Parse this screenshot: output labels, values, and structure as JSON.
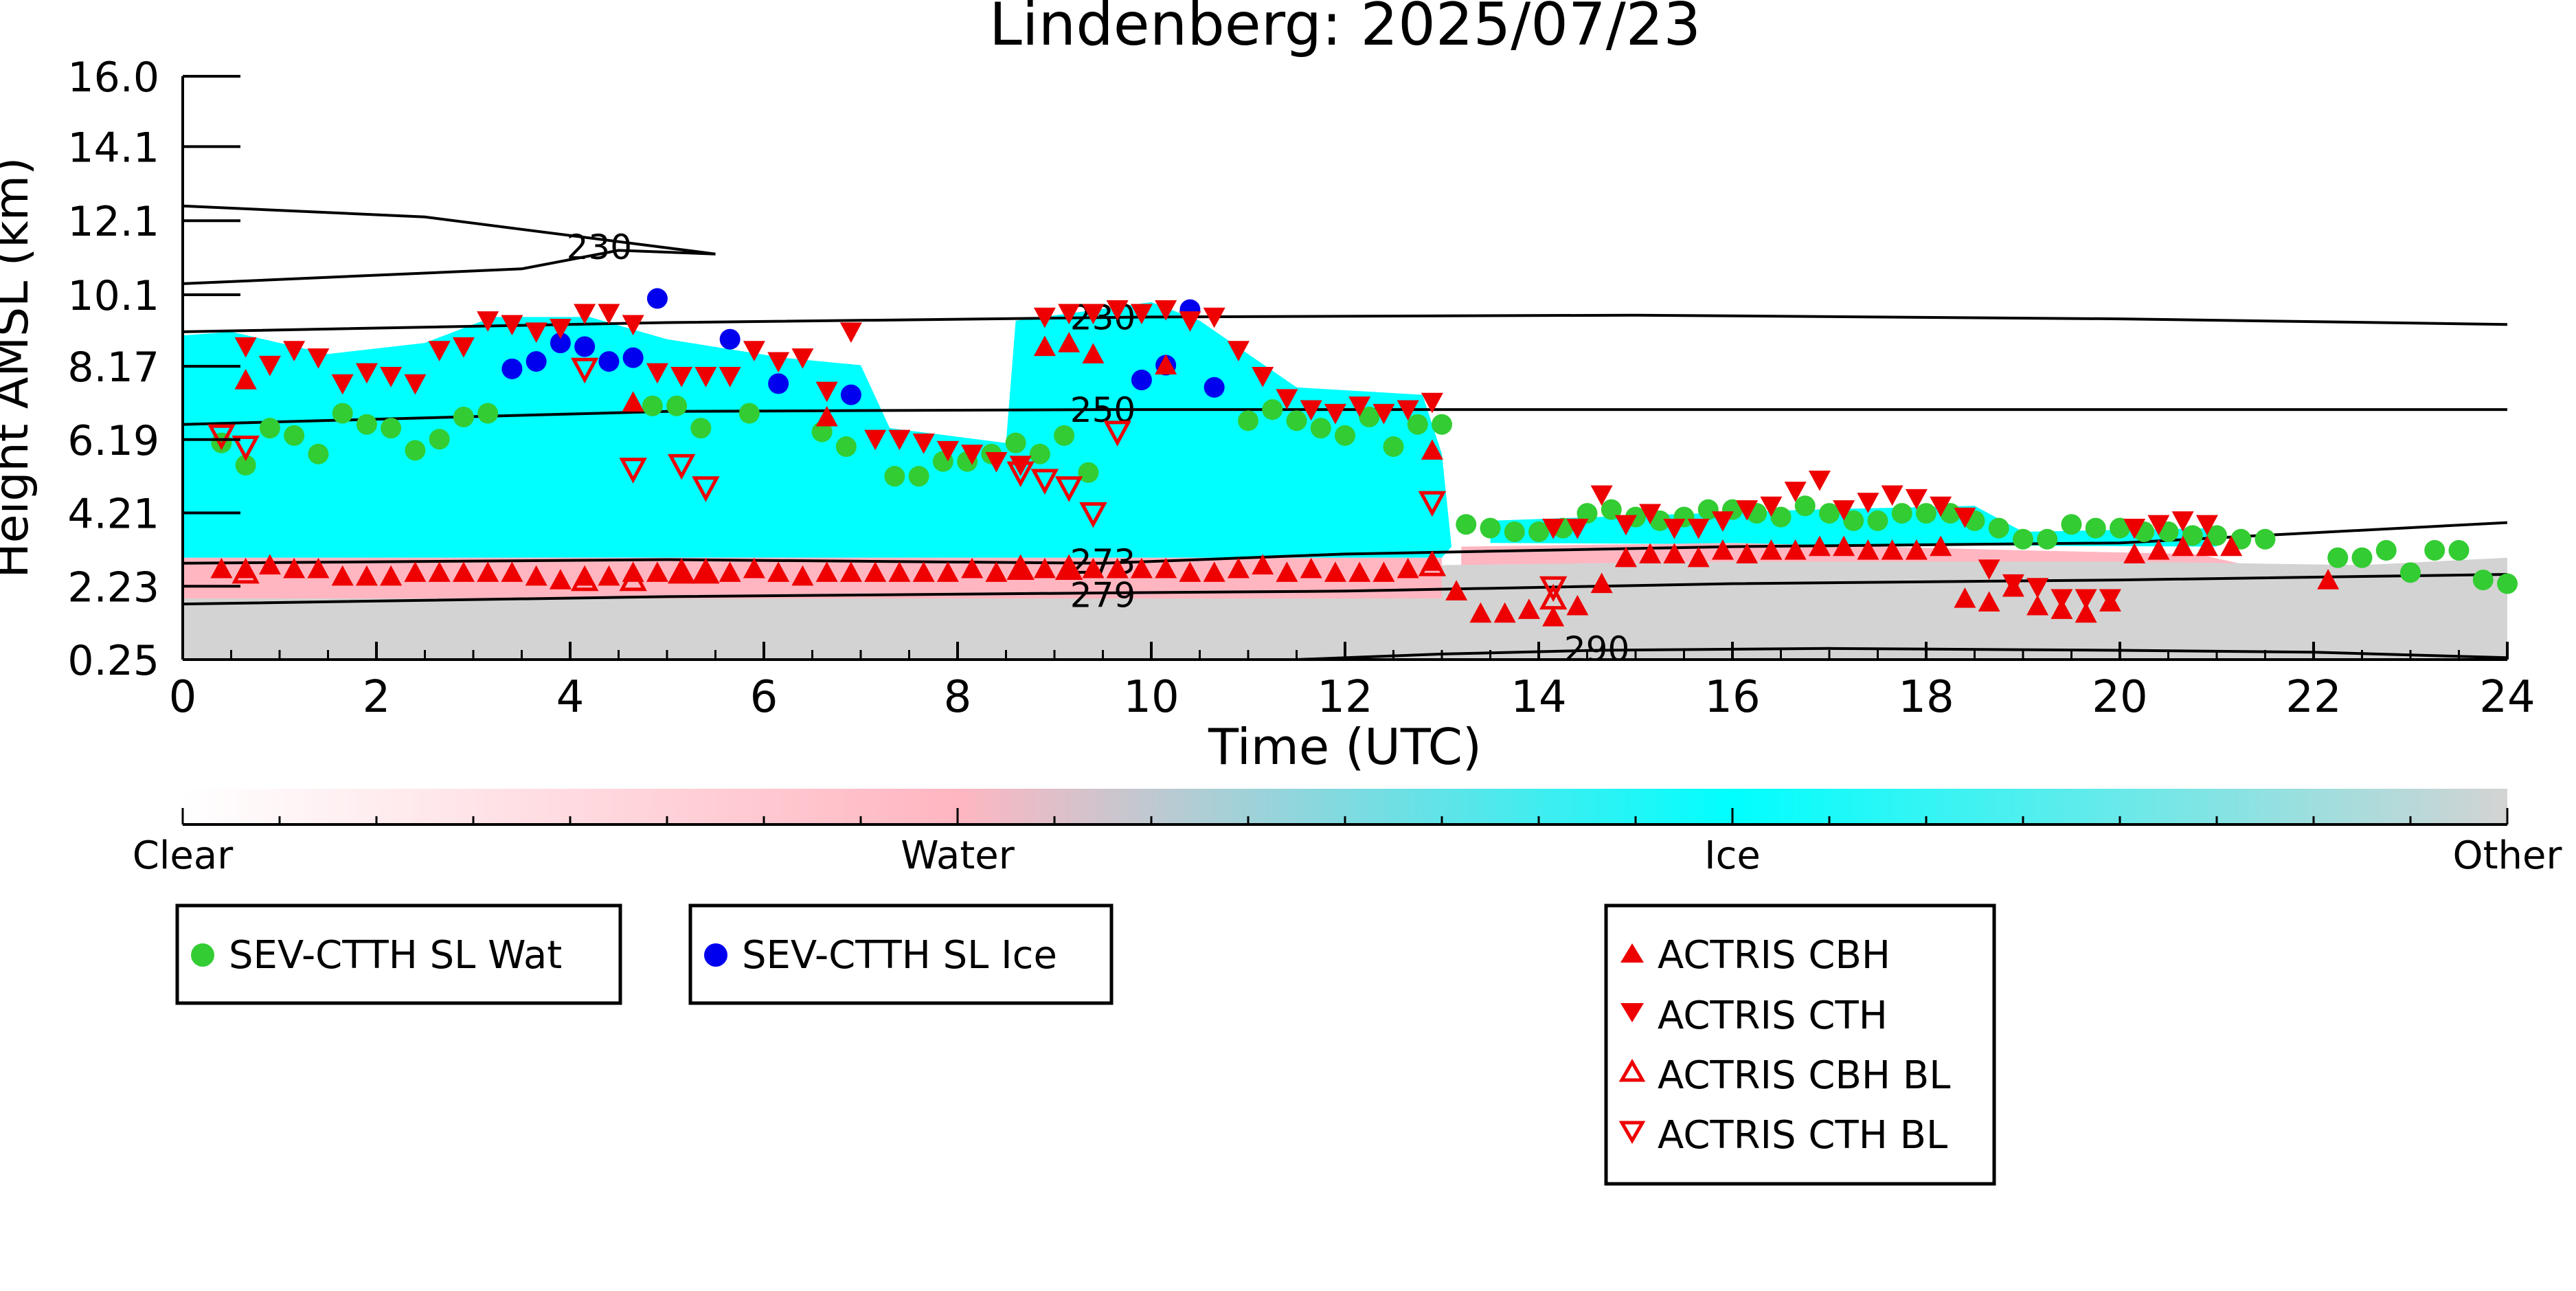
{
  "chart_data": {
    "type": "scatter",
    "title": "Lindenberg: 2025/07/23",
    "xlabel": "Time (UTC)",
    "ylabel": "Height AMSL (km)",
    "xlim": [
      0,
      24
    ],
    "ylim": [
      0.25,
      16.0
    ],
    "x_ticks": [
      0,
      2,
      4,
      6,
      8,
      10,
      12,
      14,
      16,
      18,
      20,
      22,
      24
    ],
    "y_ticks": [
      0.25,
      2.23,
      4.21,
      6.19,
      8.17,
      10.1,
      12.1,
      14.1,
      16.0
    ],
    "y_tick_labels": [
      "0.25",
      "2.23",
      "4.21",
      "6.19",
      "8.17",
      "10.1",
      "12.1",
      "14.1",
      "16.0"
    ],
    "grid": false,
    "colorbar": {
      "labels": [
        "Clear",
        "Water",
        "Ice",
        "Other"
      ],
      "colors": [
        "#ffffff",
        "#ffb6c1",
        "#00ffff",
        "#d3d3d3"
      ]
    },
    "classification_regions": [
      {
        "class": "Ice",
        "color": "#00ffff",
        "outline": [
          [
            0,
            9.0
          ],
          [
            0.5,
            9.1
          ],
          [
            1.5,
            8.5
          ],
          [
            2.5,
            8.8
          ],
          [
            3.2,
            9.5
          ],
          [
            4.2,
            9.5
          ],
          [
            5.0,
            8.9
          ],
          [
            6.2,
            8.4
          ],
          [
            7.0,
            8.2
          ],
          [
            7.3,
            6.5
          ],
          [
            8.5,
            6.1
          ],
          [
            8.6,
            9.4
          ],
          [
            10.0,
            9.9
          ],
          [
            10.5,
            9.4
          ],
          [
            11.5,
            7.6
          ],
          [
            12.8,
            7.4
          ],
          [
            13.0,
            5.8
          ],
          [
            13.1,
            3.3
          ],
          [
            13.0,
            3.0
          ],
          [
            0,
            3.0
          ]
        ]
      },
      {
        "class": "Ice",
        "color": "#00ffff",
        "outline": [
          [
            13.5,
            4.0
          ],
          [
            16.8,
            4.3
          ],
          [
            18.5,
            4.4
          ],
          [
            19.0,
            3.7
          ],
          [
            21.0,
            3.8
          ],
          [
            21.0,
            3.3
          ],
          [
            13.5,
            3.4
          ]
        ]
      },
      {
        "class": "Water",
        "color": "#ffb6c1",
        "outline": [
          [
            13.2,
            3.3
          ],
          [
            16.0,
            3.4
          ],
          [
            19.0,
            3.2
          ],
          [
            20.8,
            3.1
          ],
          [
            22.0,
            2.4
          ],
          [
            22.0,
            1.4
          ],
          [
            13.2,
            1.5
          ]
        ]
      },
      {
        "class": "Other",
        "color": "#d3d3d3",
        "outline": [
          [
            13.0,
            2.8
          ],
          [
            16.0,
            2.9
          ],
          [
            20.0,
            2.9
          ],
          [
            22.5,
            2.8
          ],
          [
            24,
            3.0
          ],
          [
            24,
            0.25
          ],
          [
            13.0,
            0.25
          ]
        ]
      },
      {
        "class": "Other",
        "color": "#d3d3d3",
        "outline": [
          [
            0,
            1.95
          ],
          [
            13.0,
            1.95
          ],
          [
            13.0,
            0.25
          ],
          [
            0,
            0.25
          ]
        ]
      },
      {
        "class": "Water",
        "color": "#ffb6c1",
        "outline": [
          [
            0,
            3.0
          ],
          [
            13.0,
            3.0
          ],
          [
            13.0,
            1.9
          ],
          [
            0,
            1.9
          ]
        ]
      }
    ],
    "contours": [
      {
        "label": "230",
        "label_at": [
          4.3,
          11.4
        ],
        "points": [
          [
            0,
            12.5
          ],
          [
            2.5,
            12.2
          ],
          [
            5.5,
            11.2
          ],
          [
            4.5,
            11.3
          ],
          [
            3.5,
            10.8
          ],
          [
            0,
            10.4
          ]
        ]
      },
      {
        "label": "230",
        "label_at": [
          9.5,
          9.5
        ],
        "points": [
          [
            0,
            9.1
          ],
          [
            5,
            9.35
          ],
          [
            10,
            9.5
          ],
          [
            15,
            9.55
          ],
          [
            20,
            9.45
          ],
          [
            24,
            9.3
          ]
        ]
      },
      {
        "label": "250",
        "label_at": [
          9.5,
          7.0
        ],
        "points": [
          [
            0,
            6.6
          ],
          [
            5,
            6.95
          ],
          [
            9.5,
            7.0
          ],
          [
            15,
            7.0
          ],
          [
            20,
            7.0
          ],
          [
            24,
            7.0
          ]
        ]
      },
      {
        "label": "273",
        "label_at": [
          9.5,
          2.9
        ],
        "points": [
          [
            0,
            2.85
          ],
          [
            5,
            2.95
          ],
          [
            9.5,
            2.85
          ],
          [
            12,
            3.1
          ],
          [
            16,
            3.3
          ],
          [
            20,
            3.4
          ],
          [
            24,
            3.95
          ]
        ]
      },
      {
        "label": "279",
        "label_at": [
          9.5,
          2.0
        ],
        "points": [
          [
            0,
            1.75
          ],
          [
            5,
            1.95
          ],
          [
            9.5,
            2.05
          ],
          [
            12,
            2.1
          ],
          [
            16,
            2.3
          ],
          [
            20,
            2.4
          ],
          [
            24,
            2.55
          ]
        ]
      },
      {
        "label": "290",
        "label_at": [
          14.6,
          0.55
        ],
        "points": [
          [
            11.5,
            0.25
          ],
          [
            13,
            0.4
          ],
          [
            14.6,
            0.5
          ],
          [
            17,
            0.55
          ],
          [
            20,
            0.5
          ],
          [
            22,
            0.45
          ],
          [
            24,
            0.3
          ]
        ]
      }
    ],
    "series": [
      {
        "name": "SEV-CTTH SL Wat",
        "marker": "circle",
        "color": "#33cc33",
        "x": [
          0.4,
          0.65,
          0.9,
          1.15,
          1.4,
          1.65,
          1.9,
          2.15,
          2.4,
          2.65,
          2.9,
          3.15,
          4.85,
          5.1,
          5.35,
          5.85,
          6.6,
          6.85,
          7.35,
          7.6,
          7.85,
          8.1,
          8.35,
          8.6,
          8.85,
          9.1,
          9.35,
          11.0,
          11.25,
          11.5,
          11.75,
          12.0,
          12.25,
          12.5,
          12.75,
          13.0,
          13.25,
          13.5,
          13.75,
          14.0,
          14.25,
          14.5,
          14.75,
          15.0,
          15.25,
          15.5,
          15.75,
          16.0,
          16.25,
          16.5,
          16.75,
          17.0,
          17.25,
          17.5,
          17.75,
          18.0,
          18.25,
          18.5,
          18.75,
          19.0,
          19.25,
          19.5,
          19.75,
          20.0,
          20.25,
          20.5,
          20.75,
          21.0,
          21.25,
          21.5,
          22.25,
          22.5,
          22.75,
          23.0,
          23.25,
          23.5,
          23.75,
          24.0
        ],
        "y": [
          6.1,
          5.5,
          6.5,
          6.3,
          5.8,
          6.9,
          6.6,
          6.5,
          5.9,
          6.2,
          6.8,
          6.9,
          7.1,
          7.1,
          6.5,
          6.9,
          6.4,
          6.0,
          5.2,
          5.2,
          5.6,
          5.6,
          5.8,
          6.1,
          5.8,
          6.3,
          5.3,
          6.7,
          7.0,
          6.7,
          6.5,
          6.3,
          6.8,
          6.0,
          6.6,
          6.6,
          3.9,
          3.8,
          3.7,
          3.7,
          3.8,
          4.2,
          4.3,
          4.1,
          4.0,
          4.1,
          4.3,
          4.3,
          4.2,
          4.1,
          4.4,
          4.2,
          4.0,
          4.0,
          4.2,
          4.2,
          4.2,
          4.0,
          3.8,
          3.5,
          3.5,
          3.9,
          3.8,
          3.8,
          3.7,
          3.7,
          3.6,
          3.6,
          3.5,
          3.5,
          3.0,
          3.0,
          3.2,
          2.6,
          3.2,
          3.2,
          2.4,
          2.3
        ]
      },
      {
        "name": "SEV-CTTH SL Ice",
        "marker": "circle",
        "color": "#0000ee",
        "x": [
          3.4,
          3.65,
          3.9,
          4.15,
          4.4,
          4.65,
          4.9,
          5.65,
          6.15,
          6.9,
          9.9,
          10.15,
          10.4,
          10.65
        ],
        "y": [
          8.1,
          8.3,
          8.8,
          8.7,
          8.3,
          8.4,
          10.0,
          8.9,
          7.7,
          7.4,
          7.8,
          8.2,
          9.7,
          7.6
        ]
      },
      {
        "name": "ACTRIS CBH",
        "marker": "triangle-up",
        "color": "#ee0000",
        "filled": true,
        "x": [
          0.4,
          0.65,
          0.9,
          1.15,
          1.4,
          1.65,
          1.9,
          2.15,
          2.4,
          2.65,
          2.9,
          3.15,
          3.4,
          3.65,
          3.9,
          4.15,
          4.4,
          4.65,
          4.9,
          5.15,
          5.4,
          5.65,
          5.9,
          6.15,
          6.4,
          6.65,
          6.9,
          7.15,
          7.4,
          7.65,
          7.9,
          8.15,
          8.4,
          8.65,
          8.9,
          9.15,
          9.4,
          9.65,
          9.9,
          10.15,
          10.4,
          10.65,
          10.9,
          11.15,
          11.4,
          11.65,
          11.9,
          12.15,
          12.4,
          12.65,
          12.9,
          13.15,
          13.4,
          13.65,
          13.9,
          14.15,
          14.4,
          14.65,
          14.9,
          15.15,
          15.4,
          15.65,
          15.9,
          16.15,
          16.4,
          16.65,
          16.9,
          17.15,
          17.4,
          17.65,
          17.9,
          18.15,
          18.4,
          18.65,
          18.9,
          19.15,
          19.4,
          19.65,
          19.9,
          20.15,
          20.4,
          20.65,
          20.9,
          21.15,
          22.15,
          0.65,
          4.65,
          6.65,
          8.9,
          9.15,
          9.4,
          10.15,
          12.9
        ],
        "y": [
          2.7,
          2.7,
          2.8,
          2.7,
          2.7,
          2.5,
          2.5,
          2.5,
          2.6,
          2.6,
          2.6,
          2.6,
          2.6,
          2.5,
          2.4,
          2.5,
          2.5,
          2.6,
          2.6,
          2.6,
          2.6,
          2.6,
          2.7,
          2.6,
          2.5,
          2.6,
          2.6,
          2.6,
          2.6,
          2.6,
          2.6,
          2.7,
          2.6,
          2.7,
          2.7,
          2.7,
          2.7,
          2.7,
          2.7,
          2.7,
          2.6,
          2.6,
          2.7,
          2.8,
          2.6,
          2.7,
          2.6,
          2.6,
          2.6,
          2.7,
          2.9,
          2.1,
          1.5,
          1.5,
          1.6,
          1.4,
          1.7,
          2.3,
          3.0,
          3.1,
          3.1,
          3.0,
          3.2,
          3.1,
          3.2,
          3.2,
          3.3,
          3.3,
          3.2,
          3.2,
          3.2,
          3.3,
          1.9,
          1.8,
          2.2,
          1.7,
          1.6,
          1.5,
          1.8,
          3.1,
          3.2,
          3.3,
          3.3,
          3.3,
          2.4,
          7.8,
          7.2,
          6.8,
          8.7,
          8.8,
          8.5,
          8.2,
          5.9
        ]
      },
      {
        "name": "ACTRIS CTH",
        "marker": "triangle-down",
        "color": "#ee0000",
        "filled": true,
        "x": [
          0.65,
          0.9,
          1.15,
          1.4,
          1.65,
          1.9,
          2.15,
          2.4,
          2.65,
          2.9,
          3.15,
          3.4,
          3.65,
          3.9,
          4.15,
          4.4,
          4.65,
          4.9,
          5.15,
          5.4,
          5.65,
          5.9,
          6.15,
          6.4,
          6.65,
          6.9,
          7.15,
          7.4,
          7.65,
          7.9,
          8.15,
          8.4,
          8.65,
          8.9,
          9.15,
          9.4,
          9.65,
          9.9,
          10.15,
          10.4,
          10.65,
          10.9,
          11.15,
          11.4,
          11.65,
          11.9,
          12.15,
          12.4,
          12.65,
          12.9,
          14.15,
          14.4,
          14.65,
          14.9,
          15.15,
          15.4,
          15.65,
          15.9,
          16.15,
          16.4,
          16.65,
          16.9,
          17.15,
          17.4,
          17.65,
          17.9,
          18.15,
          18.4,
          18.65,
          18.9,
          19.15,
          19.4,
          19.65,
          19.9,
          20.15,
          20.4,
          20.65,
          20.9
        ],
        "y": [
          8.7,
          8.2,
          8.6,
          8.4,
          7.7,
          8.0,
          7.9,
          7.7,
          8.6,
          8.7,
          9.4,
          9.3,
          9.1,
          9.2,
          9.6,
          9.6,
          9.3,
          8.0,
          7.9,
          7.9,
          7.9,
          8.6,
          8.3,
          8.4,
          7.5,
          9.1,
          6.2,
          6.2,
          6.1,
          5.9,
          5.8,
          5.6,
          5.5,
          9.5,
          9.6,
          9.6,
          9.7,
          9.6,
          9.7,
          9.4,
          9.5,
          8.6,
          7.9,
          7.3,
          7.0,
          6.9,
          7.1,
          6.9,
          7.0,
          7.2,
          3.8,
          3.8,
          4.7,
          3.9,
          4.2,
          3.8,
          3.8,
          4.0,
          4.3,
          4.4,
          4.8,
          5.1,
          4.3,
          4.5,
          4.7,
          4.6,
          4.4,
          4.1,
          2.7,
          2.3,
          2.2,
          1.9,
          1.9,
          1.9,
          3.8,
          3.9,
          4.0,
          3.9
        ]
      },
      {
        "name": "ACTRIS CBH BL",
        "marker": "triangle-up",
        "color": "#ee0000",
        "filled": false,
        "x": [
          0.65,
          4.15,
          4.65,
          5.15,
          5.4,
          8.65,
          9.15,
          12.9,
          14.15
        ],
        "y": [
          2.6,
          2.4,
          2.4,
          2.6,
          2.6,
          2.7,
          2.7,
          2.8,
          1.9
        ]
      },
      {
        "name": "ACTRIS CTH BL",
        "marker": "triangle-down",
        "color": "#ee0000",
        "filled": false,
        "x": [
          0.4,
          0.65,
          4.15,
          4.65,
          5.15,
          5.4,
          8.65,
          8.9,
          9.15,
          9.4,
          9.65,
          12.9,
          14.15
        ],
        "y": [
          6.3,
          6.0,
          8.1,
          5.4,
          5.5,
          4.9,
          5.3,
          5.1,
          4.9,
          4.2,
          6.4,
          4.5,
          2.2
        ]
      }
    ],
    "legend_placement": "below"
  }
}
